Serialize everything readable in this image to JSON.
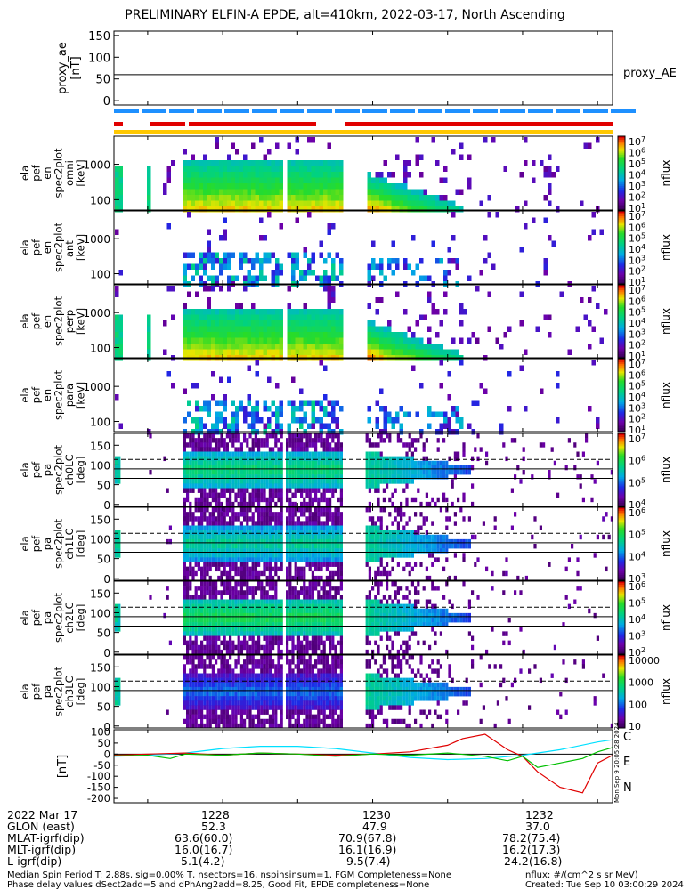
{
  "title": "PRELIMINARY ELFIN-A EPDE, alt=410km, 2022-03-17, North Ascending",
  "colors": {
    "state_bar_blue": "#1e90ff",
    "state_bar_red": "#e00000",
    "state_bar_yellow": "#ffc800",
    "comp_c": "#00e0ff",
    "comp_e": "#e00000",
    "comp_n": "#00c000"
  },
  "proxy_ae": {
    "ylabel_lines": [
      "proxy_ae",
      "[nT]"
    ],
    "tick_labels": [
      "150",
      "100",
      "50",
      "0"
    ],
    "right_label": "proxy_AE",
    "value": 60
  },
  "energy_panels": [
    {
      "ylabel_lines": [
        "ela",
        "pef",
        "en",
        "spec2plot",
        "omni",
        "[keV]"
      ],
      "tick_labels": [
        "1000",
        "100"
      ]
    },
    {
      "ylabel_lines": [
        "ela",
        "pef",
        "en",
        "spec2plot",
        "anti",
        "[keV]"
      ],
      "tick_labels": [
        "1000",
        "100"
      ]
    },
    {
      "ylabel_lines": [
        "ela",
        "pef",
        "en",
        "spec2plot",
        "perp",
        "[keV]"
      ],
      "tick_labels": [
        "1000",
        "100"
      ]
    },
    {
      "ylabel_lines": [
        "ela",
        "pef",
        "en",
        "spec2plot",
        "para",
        "[keV]"
      ],
      "tick_labels": [
        "1000",
        "100"
      ]
    }
  ],
  "energy_colorbar": {
    "label": "nflux",
    "tick_labels": [
      "10^7",
      "10^6",
      "10^5",
      "10^4",
      "10^3",
      "10^2",
      "10^1"
    ]
  },
  "pa_panels": [
    {
      "ylabel_lines": [
        "ela",
        "pef",
        "pa",
        "spec2plot",
        "ch0LC",
        "[deg]"
      ],
      "tick_labels": [
        "150",
        "100",
        "50",
        "0"
      ],
      "colorbar_ticks": [
        "10^7",
        "10^6",
        "10^5",
        "10^4"
      ]
    },
    {
      "ylabel_lines": [
        "ela",
        "pef",
        "pa",
        "spec2plot",
        "ch1LC",
        "[deg]"
      ],
      "tick_labels": [
        "150",
        "100",
        "50",
        "0"
      ],
      "colorbar_ticks": [
        "10^6",
        "10^5",
        "10^4",
        "10^3"
      ]
    },
    {
      "ylabel_lines": [
        "ela",
        "pef",
        "pa",
        "spec2plot",
        "ch2LC",
        "[deg]"
      ],
      "tick_labels": [
        "150",
        "100",
        "50",
        "0"
      ],
      "colorbar_ticks": [
        "10^6",
        "10^5",
        "10^4",
        "10^3",
        "10^2"
      ]
    },
    {
      "ylabel_lines": [
        "ela",
        "pef",
        "pa",
        "spec2plot",
        "ch3LC",
        "[deg]"
      ],
      "tick_labels": [
        "150",
        "100",
        "50",
        "0"
      ],
      "colorbar_ticks": [
        "10000",
        "1000",
        "100",
        "10"
      ]
    }
  ],
  "pa_colorbar_label": "nflux",
  "db_panel": {
    "ylabel": "[nT]",
    "tick_labels": [
      "100",
      "50",
      "0",
      "-50",
      "-100",
      "-150",
      "-200"
    ],
    "legend": [
      "C",
      "E",
      "N"
    ],
    "side_stamp": "Mon Sep 9 20:05:28 2024"
  },
  "ephemeris": {
    "header": "2022 Mar 17",
    "rows": [
      {
        "label": "GLON (east)",
        "values": [
          "52.3",
          "47.9",
          "37.0"
        ]
      },
      {
        "label": "MLAT-igrf(dip)",
        "values": [
          "63.6(60.0)",
          "70.9(67.8)",
          "78.2(75.4)"
        ]
      },
      {
        "label": "MLT-igrf(dip)",
        "values": [
          "16.0(16.7)",
          "16.1(16.9)",
          "16.2(17.3)"
        ]
      },
      {
        "label": "L-igrf(dip)",
        "values": [
          "5.1(4.2)",
          "9.5(7.4)",
          "24.2(16.8)"
        ]
      }
    ],
    "times": [
      "1228",
      "1230",
      "1232"
    ]
  },
  "footer": {
    "line1": "Median Spin Period T: 2.88s, sig=0.00% T, nsectors=16, nspinsinsum=1, FGM Completeness=None",
    "line2": "Phase delay values dSect2add=5 and dPhAng2add=8.25, Good Fit, EPDE completeness=None",
    "units": "nflux: #/(cm^2 s sr MeV)",
    "created": "Created: Tue Sep 10 03:00:29 2024"
  },
  "chart_data": [
    {
      "type": "line",
      "title": "proxy_AE",
      "ylabel": "proxy_ae [nT]",
      "ylim": [
        -10,
        160
      ],
      "series": [
        {
          "name": "proxy_AE",
          "x": [
            "1226.5",
            "1233.2"
          ],
          "values": [
            60,
            60
          ]
        }
      ]
    },
    {
      "type": "heatmap",
      "ylabel": "ela pef en spec2plot omni [keV]",
      "yscale": "log",
      "ylim": [
        60,
        7000
      ],
      "zlabel": "nflux"
    },
    {
      "type": "line",
      "ylabel": "[nT]",
      "ylim": [
        -220,
        110
      ],
      "x_range_min": [
        1226.55,
        1233.2
      ],
      "series": [
        {
          "name": "C",
          "x": [
            1226.55,
            1227.0,
            1227.5,
            1228.0,
            1228.5,
            1229.0,
            1229.5,
            1230.0,
            1230.5,
            1231.0,
            1231.5,
            1232.0,
            1232.5,
            1233.0,
            1233.2
          ],
          "values": [
            -10,
            -5,
            5,
            25,
            35,
            35,
            25,
            5,
            -15,
            -25,
            -20,
            -5,
            20,
            55,
            65
          ]
        },
        {
          "name": "E",
          "x": [
            1226.55,
            1227.0,
            1227.5,
            1228.0,
            1228.5,
            1229.0,
            1229.5,
            1230.0,
            1230.5,
            1231.0,
            1231.2,
            1231.5,
            1231.8,
            1232.0,
            1232.2,
            1232.5,
            1232.8,
            1233.0,
            1233.2
          ],
          "values": [
            -5,
            0,
            5,
            -5,
            5,
            0,
            -5,
            0,
            10,
            40,
            70,
            90,
            20,
            -10,
            -80,
            -150,
            -175,
            -40,
            -5
          ]
        },
        {
          "name": "N",
          "x": [
            1226.55,
            1227.0,
            1227.3,
            1227.5,
            1228.0,
            1228.5,
            1229.0,
            1229.5,
            1230.0,
            1230.5,
            1231.0,
            1231.5,
            1231.8,
            1232.0,
            1232.2,
            1232.5,
            1232.8,
            1233.0,
            1233.2
          ],
          "values": [
            -8,
            -5,
            -20,
            0,
            -5,
            5,
            0,
            -10,
            0,
            -5,
            5,
            -10,
            -30,
            -10,
            -60,
            -40,
            -20,
            10,
            30
          ]
        }
      ]
    }
  ]
}
